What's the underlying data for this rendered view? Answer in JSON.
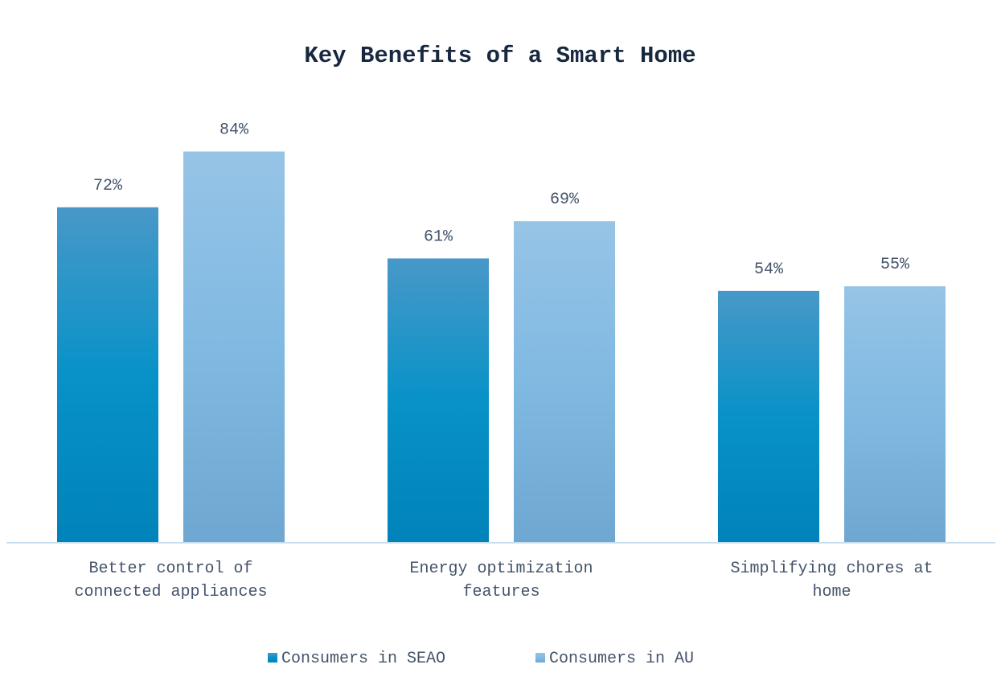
{
  "chart_data": {
    "type": "bar",
    "title": "Key Benefits of a Smart Home",
    "xlabel": "",
    "ylabel": "",
    "ylim": [
      0,
      100
    ],
    "grid": false,
    "legend_position": "bottom",
    "categories": [
      [
        "Better control of",
        "connected appliances"
      ],
      [
        "Energy optimization",
        "features"
      ],
      [
        "Simplifying chores at",
        "home"
      ]
    ],
    "series": [
      {
        "name": "Consumers in SEAO",
        "values": [
          72,
          61,
          54
        ],
        "labels": [
          "72%",
          "61%",
          "54%"
        ],
        "color_top": "#4898c8",
        "color_bottom": "#0083b9"
      },
      {
        "name": "Consumers in AU",
        "values": [
          84,
          69,
          55
        ],
        "labels": [
          "84%",
          "69%",
          "55%"
        ],
        "color_top": "#96c4e6",
        "color_bottom": "#6ea7d1"
      }
    ],
    "axis_color": "#c5dcef"
  }
}
